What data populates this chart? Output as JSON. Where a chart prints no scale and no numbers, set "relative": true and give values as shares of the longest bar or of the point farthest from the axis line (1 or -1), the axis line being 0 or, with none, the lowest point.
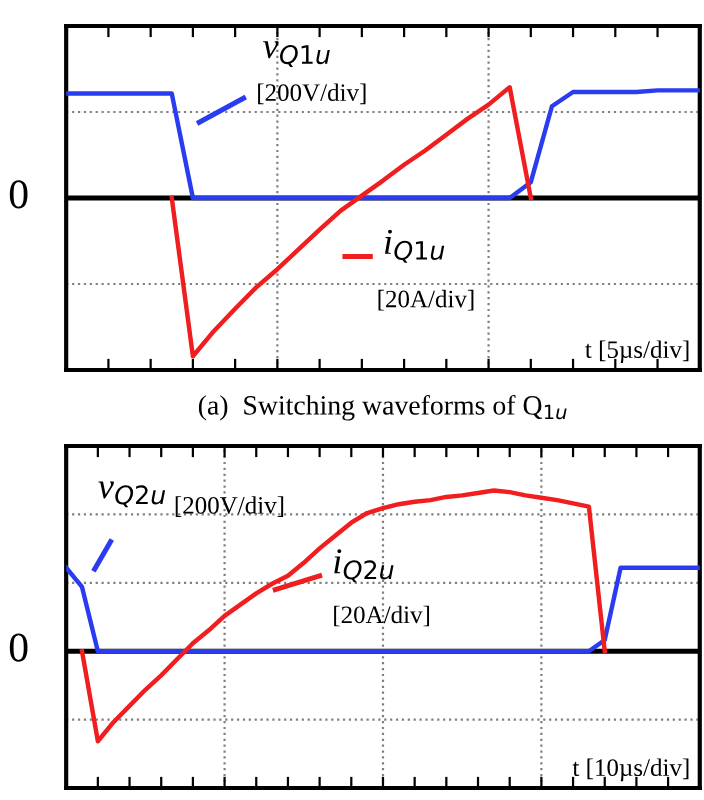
{
  "chart_data": [
    {
      "type": "line",
      "relative": true,
      "xlabel": "t [5µs/div]",
      "grid": true,
      "categories": [
        null,
        null,
        null,
        null,
        null,
        null,
        null,
        null,
        null,
        null,
        null,
        null,
        null,
        null,
        null,
        null,
        null,
        null,
        null,
        null,
        null,
        null,
        null,
        null,
        null,
        null,
        null,
        null,
        null,
        null,
        null
      ],
      "series": [
        {
          "name": "v$_{Q1u}$",
          "color": "#2a3cf0",
          "values": [
            0.66,
            0.66,
            0.66,
            0.66,
            0.66,
            0.66,
            0,
            0,
            0,
            0,
            0,
            0,
            0,
            0,
            0,
            0,
            0,
            0,
            0,
            0,
            0,
            0,
            0.1,
            0.58,
            0.67,
            0.67,
            0.67,
            0.67,
            0.68,
            0.68,
            0.68
          ]
        },
        {
          "name": "i$_{Q1u}$",
          "color": "#f01e1e",
          "values": [
            null,
            null,
            null,
            null,
            null,
            0,
            -1,
            -0.84,
            -0.7,
            -0.565,
            -0.45,
            -0.325,
            -0.2,
            -0.08,
            0.015,
            0.11,
            0.21,
            0.3,
            0.4,
            0.5,
            0.59,
            0.7,
            0,
            null,
            null,
            null,
            null,
            null,
            null,
            null,
            null
          ]
        }
      ],
      "annotations": [
        "0",
        "[200V/div]",
        "[20A/div]",
        "(a)  Switching waveforms of Q$_{1u}$"
      ]
    },
    {
      "type": "line",
      "relative": true,
      "xlabel": "t [10µs/div]",
      "grid": true,
      "categories": [
        null,
        null,
        null,
        null,
        null,
        null,
        null,
        null,
        null,
        null,
        null,
        null,
        null,
        null,
        null,
        null,
        null,
        null,
        null,
        null,
        null,
        null,
        null,
        null,
        null,
        null,
        null,
        null,
        null,
        null,
        null,
        null,
        null,
        null,
        null,
        null,
        null,
        null,
        null,
        null,
        null
      ],
      "series": [
        {
          "name": "v$_{Q2u}$",
          "color": "#2a3cf0",
          "values": [
            0.52,
            0.4,
            0,
            0,
            0,
            0,
            0,
            0,
            0,
            0,
            0,
            0,
            0,
            0,
            0,
            0,
            0,
            0,
            0,
            0,
            0,
            0,
            0,
            0,
            0,
            0,
            0,
            0,
            0,
            0,
            0,
            0,
            0,
            0,
            0.07,
            0.52,
            0.52,
            0.52,
            0.52,
            0.52,
            0.52
          ]
        },
        {
          "name": "i$_{Q2u}$",
          "color": "#f01e1e",
          "values": [
            null,
            0,
            -0.56,
            -0.44,
            -0.34,
            -0.24,
            -0.15,
            -0.05,
            0.05,
            0.13,
            0.22,
            0.29,
            0.36,
            0.42,
            0.47,
            0.55,
            0.64,
            0.72,
            0.8,
            0.86,
            0.89,
            0.915,
            0.93,
            0.94,
            0.96,
            0.97,
            0.985,
            1.0,
            0.99,
            0.97,
            0.955,
            0.94,
            0.92,
            0.9,
            0,
            null,
            null,
            null,
            null,
            null,
            null
          ]
        }
      ],
      "annotations": [
        "0",
        "[200V/div]",
        "[20A/div]"
      ]
    }
  ]
}
